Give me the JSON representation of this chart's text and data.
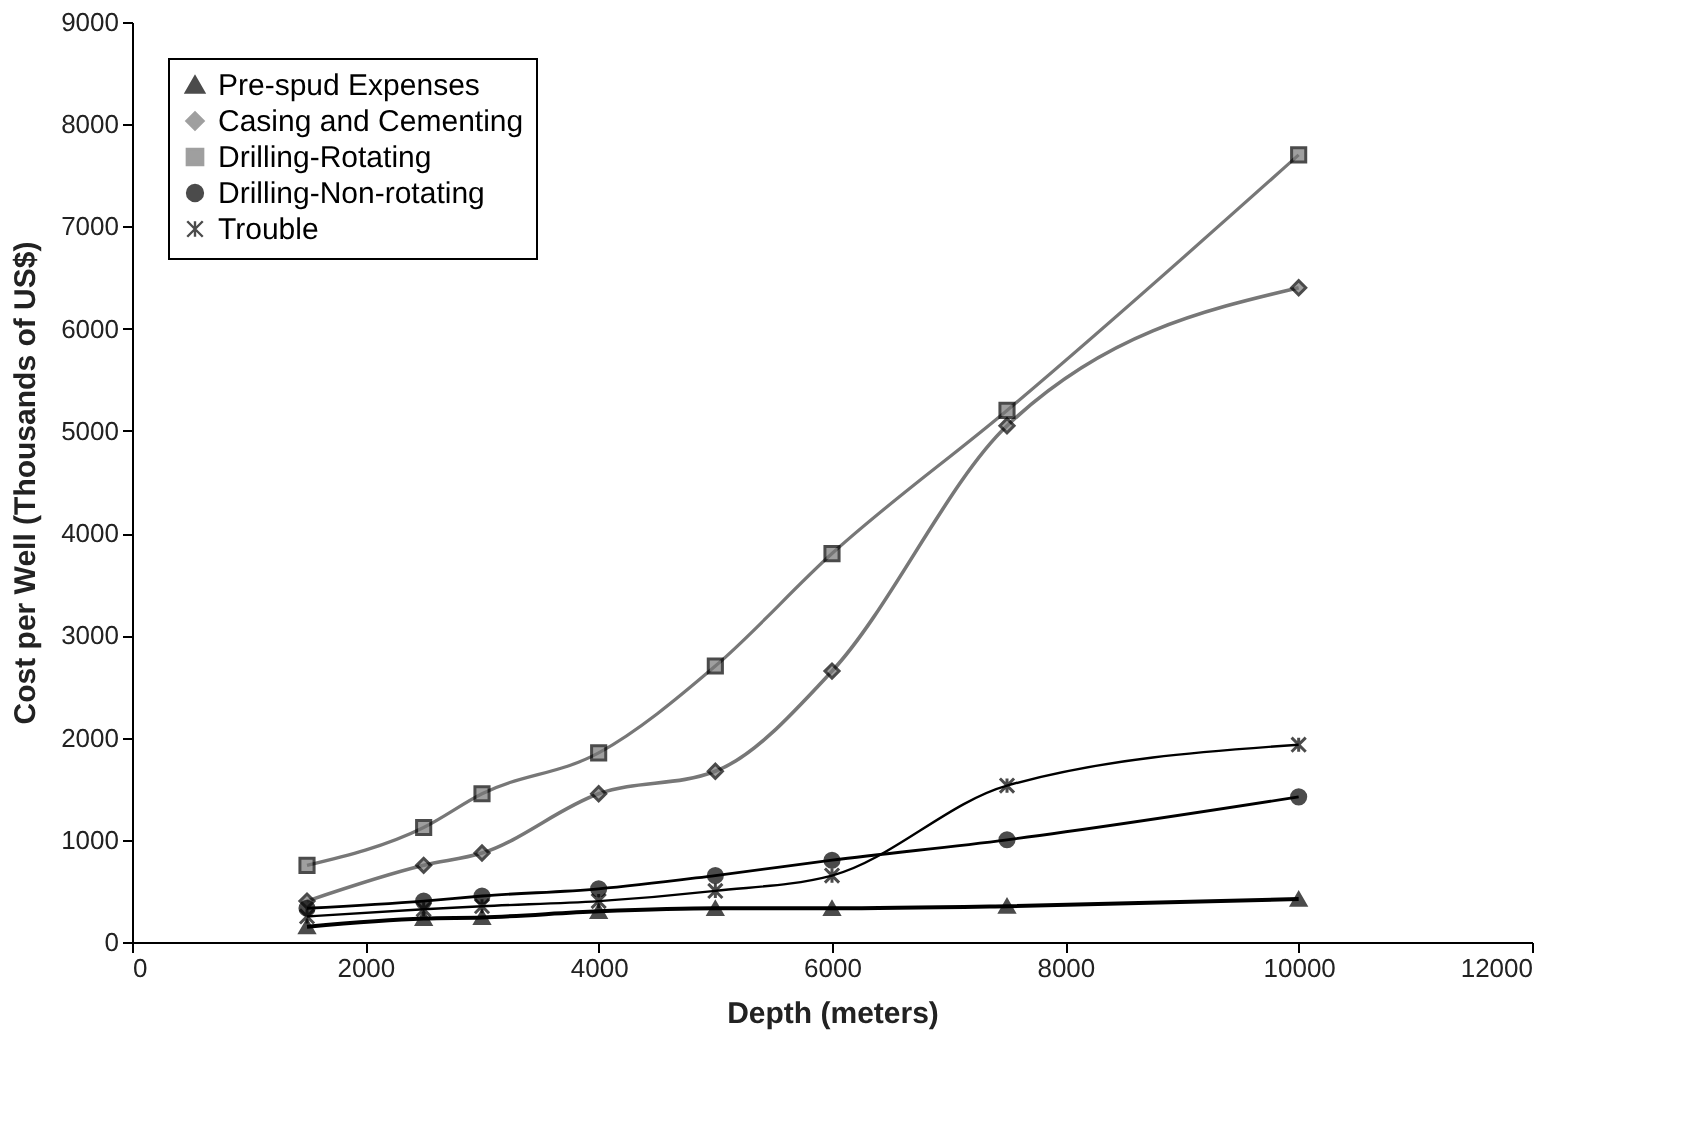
{
  "chart_data": {
    "type": "line",
    "xlabel": "Depth (meters)",
    "ylabel": "Cost per Well (Thousands of US$)",
    "x": [
      1500,
      2500,
      3000,
      4000,
      5000,
      6000,
      7500,
      10000
    ],
    "series": [
      {
        "name": "Pre-spud Expenses",
        "color": "#000000",
        "marker": "triangle",
        "values": [
          150,
          230,
          240,
          300,
          330,
          330,
          350,
          420
        ]
      },
      {
        "name": "Casing and Cementing",
        "color": "#777777",
        "marker": "diamond",
        "values": [
          400,
          750,
          870,
          1450,
          1670,
          2650,
          5050,
          6400
        ]
      },
      {
        "name": "Drilling-Rotating",
        "color": "#777777",
        "marker": "square",
        "values": [
          750,
          1120,
          1450,
          1850,
          2700,
          3800,
          5200,
          7700
        ]
      },
      {
        "name": "Drilling-Non-rotating",
        "color": "#000000",
        "marker": "circle",
        "values": [
          330,
          400,
          450,
          520,
          650,
          800,
          1000,
          1420
        ]
      },
      {
        "name": "Trouble",
        "color": "#000000",
        "marker": "cross",
        "values": [
          250,
          320,
          350,
          400,
          500,
          650,
          1530,
          1930
        ]
      }
    ],
    "xlim": [
      0,
      12000
    ],
    "xticks": [
      0,
      2000,
      4000,
      6000,
      8000,
      10000,
      12000
    ],
    "ylim": [
      0,
      9000
    ],
    "yticks": [
      0,
      1000,
      2000,
      3000,
      4000,
      5000,
      6000,
      7000,
      8000,
      9000
    ],
    "grid": false,
    "legend": "top left",
    "line_style": "solid"
  }
}
